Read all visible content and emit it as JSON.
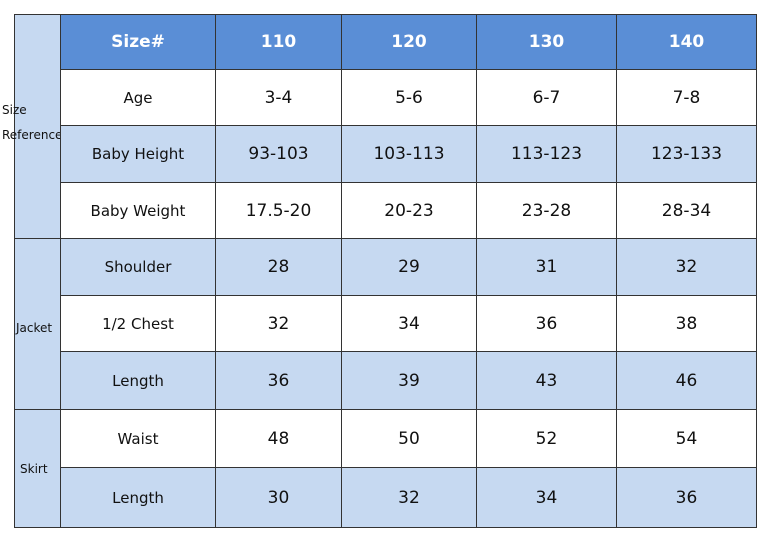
{
  "table": {
    "header": [
      "Size#",
      "110",
      "120",
      "130",
      "140"
    ],
    "groups": [
      {
        "label": "Size Reference",
        "rows": [
          [
            "Age",
            "3-4",
            "5-6",
            "6-7",
            "7-8"
          ],
          [
            "Baby Height",
            "93-103",
            "103-113",
            "113-123",
            "123-133"
          ],
          [
            "Baby Weight",
            "17.5-20",
            "20-23",
            "23-28",
            "28-34"
          ]
        ]
      },
      {
        "label": "Jacket",
        "rows": [
          [
            "Shoulder",
            28,
            29,
            31,
            32
          ],
          [
            "1/2 Chest",
            32,
            34,
            36,
            38
          ],
          [
            "Length",
            36,
            39,
            43,
            46
          ]
        ]
      },
      {
        "label": "Skirt",
        "rows": [
          [
            "Waist",
            48,
            50,
            52,
            54
          ],
          [
            "Length",
            30,
            32,
            34,
            36
          ]
        ]
      }
    ]
  }
}
